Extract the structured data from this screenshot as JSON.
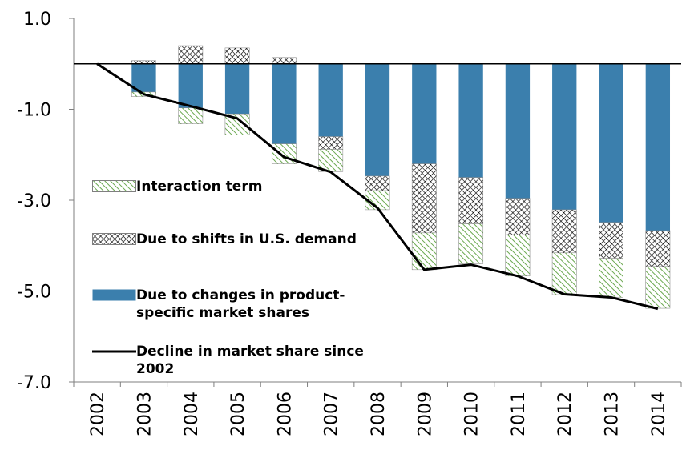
{
  "chart_data": {
    "type": "bar",
    "stacked": true,
    "categories": [
      "2002",
      "2003",
      "2004",
      "2005",
      "2006",
      "2007",
      "2008",
      "2009",
      "2010",
      "2011",
      "2012",
      "2013",
      "2014"
    ],
    "series": [
      {
        "name": "Due to changes in product-specific market shares",
        "color": "#3b7fad",
        "pattern": "solid",
        "values": [
          0,
          -0.62,
          -0.97,
          -1.1,
          -1.76,
          -1.6,
          -2.47,
          -2.2,
          -2.5,
          -2.96,
          -3.21,
          -3.49,
          -3.67
        ]
      },
      {
        "name": "Due to shifts in U.S. demand",
        "color": "#000000",
        "pattern": "cross",
        "values": [
          0,
          0.07,
          0.4,
          0.35,
          0.14,
          -0.28,
          -0.32,
          -1.52,
          -1.02,
          -0.81,
          -0.95,
          -0.79,
          -0.79
        ]
      },
      {
        "name": "Interaction term",
        "color": "#6aa84f",
        "pattern": "diagonal",
        "values": [
          0,
          -0.1,
          -0.35,
          -0.46,
          -0.44,
          -0.49,
          -0.42,
          -0.81,
          -0.88,
          -0.9,
          -0.92,
          -0.86,
          -0.92
        ]
      },
      {
        "name": "Decline in market share since 2002",
        "color": "#000000",
        "type": "line",
        "values": [
          0,
          -0.67,
          -0.93,
          -1.2,
          -2.05,
          -2.38,
          -3.17,
          -4.53,
          -4.42,
          -4.67,
          -5.07,
          -5.14,
          -5.39
        ]
      }
    ],
    "legend_order": [
      2,
      1,
      0,
      3
    ],
    "ylim": [
      -7,
      1
    ],
    "yticks": [
      {
        "value": -7,
        "label": "-7.0"
      },
      {
        "value": -5,
        "label": "-5.0"
      },
      {
        "value": -3,
        "label": "-3.0"
      },
      {
        "value": -1,
        "label": "-1.0"
      },
      {
        "value": 1,
        "label": "1.0"
      }
    ]
  }
}
